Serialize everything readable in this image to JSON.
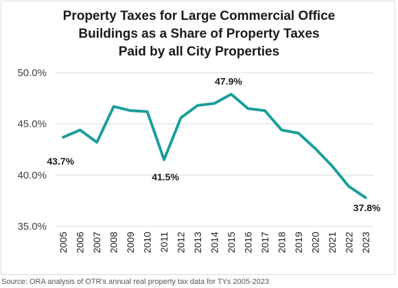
{
  "chart_data": {
    "type": "line",
    "title_lines": [
      "Property Taxes for Large Commercial Office",
      "Buildings as a Share of Property Taxes",
      "Paid by all City Properties"
    ],
    "xlabel": "",
    "ylabel": "",
    "categories": [
      "2005",
      "2006",
      "2007",
      "2008",
      "2009",
      "2010",
      "2011",
      "2012",
      "2013",
      "2014",
      "2015",
      "2016",
      "2017",
      "2018",
      "2019",
      "2020",
      "2021",
      "2022",
      "2023"
    ],
    "series": [
      {
        "values": [
          43.7,
          44.4,
          43.2,
          46.7,
          46.3,
          46.2,
          41.5,
          45.6,
          46.8,
          47.0,
          47.9,
          46.5,
          46.3,
          44.4,
          44.1,
          42.6,
          40.9,
          38.9,
          37.8
        ]
      }
    ],
    "ylim": [
      35.0,
      50.0
    ],
    "yticks": [
      "35.0%",
      "40.0%",
      "45.0%",
      "50.0%"
    ],
    "grid": true,
    "color": "#1a9e9a",
    "annotations": [
      {
        "index": 0,
        "text": "43.7%"
      },
      {
        "index": 6,
        "text": "41.5%"
      },
      {
        "index": 10,
        "text": "47.9%"
      },
      {
        "index": 18,
        "text": "37.8%"
      }
    ]
  },
  "source_note": "Source: ORA analysis of OTR's annual real property tax data for TYs 2005-2023"
}
